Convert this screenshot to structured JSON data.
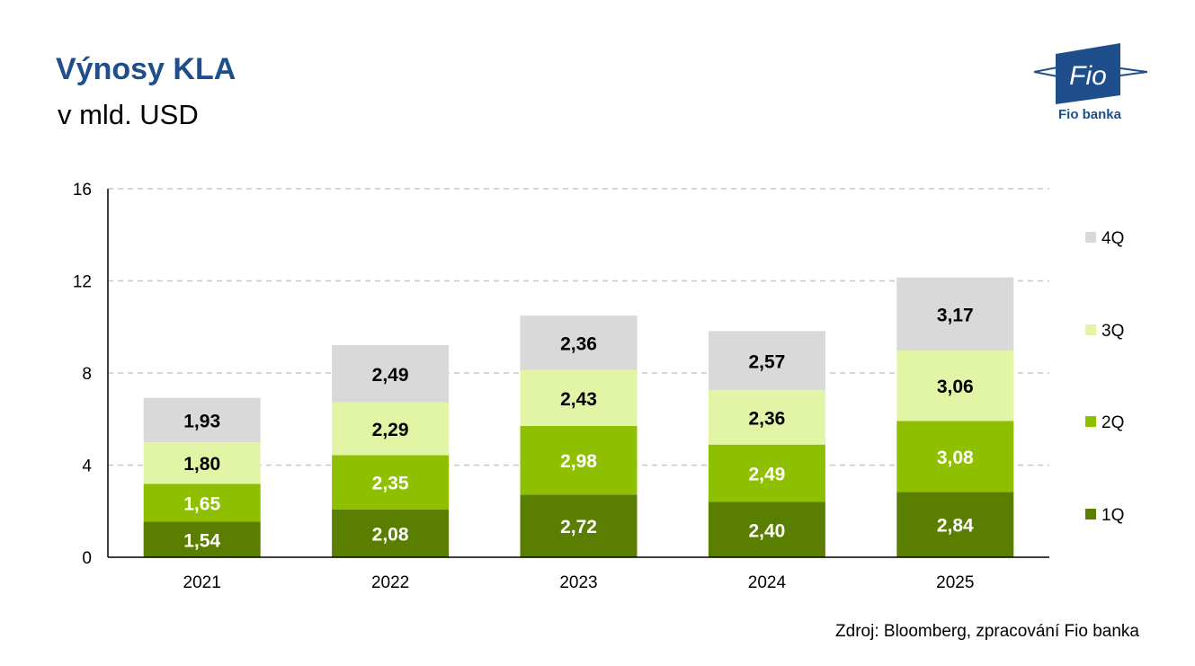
{
  "header": {
    "title": "Výnosy KLA",
    "subtitle": "v mld. USD"
  },
  "logo": {
    "wordmark": "Fio",
    "caption": "Fio banka",
    "icon": "fio-banka-logo-icon"
  },
  "footer": {
    "source": "Zdroj: Bloomberg, zpracování Fio banka"
  },
  "chart_data": {
    "type": "bar",
    "stacked": true,
    "title": "Výnosy KLA",
    "subtitle": "v mld. USD",
    "categories": [
      "2021",
      "2022",
      "2023",
      "2024",
      "2025"
    ],
    "yticks": [
      "0",
      "4",
      "8",
      "12",
      "16"
    ],
    "ylim": [
      0,
      16
    ],
    "grid": "horizontal-dashed",
    "legend_position": "right",
    "series": [
      {
        "name": "1Q",
        "values": [
          1.54,
          2.08,
          2.72,
          2.4,
          2.84
        ],
        "labels": [
          "1,54",
          "2,08",
          "2,72",
          "2,40",
          "2,84"
        ],
        "color": "#5a7f00",
        "label_color": "#ffffff"
      },
      {
        "name": "2Q",
        "values": [
          1.65,
          2.35,
          2.98,
          2.49,
          3.08
        ],
        "labels": [
          "1,65",
          "2,35",
          "2,98",
          "2,49",
          "3,08"
        ],
        "color": "#8fc000",
        "label_color": "#ffffff"
      },
      {
        "name": "3Q",
        "values": [
          1.8,
          2.29,
          2.43,
          2.36,
          3.06
        ],
        "labels": [
          "1,80",
          "2,29",
          "2,43",
          "2,36",
          "3,06"
        ],
        "color": "#e2f5a6",
        "label_color": "#000000"
      },
      {
        "name": "4Q",
        "values": [
          1.93,
          2.49,
          2.36,
          2.57,
          3.17
        ],
        "labels": [
          "1,93",
          "2,49",
          "2,36",
          "2,57",
          "3,17"
        ],
        "color": "#d9d9d9",
        "label_color": "#000000"
      }
    ]
  }
}
